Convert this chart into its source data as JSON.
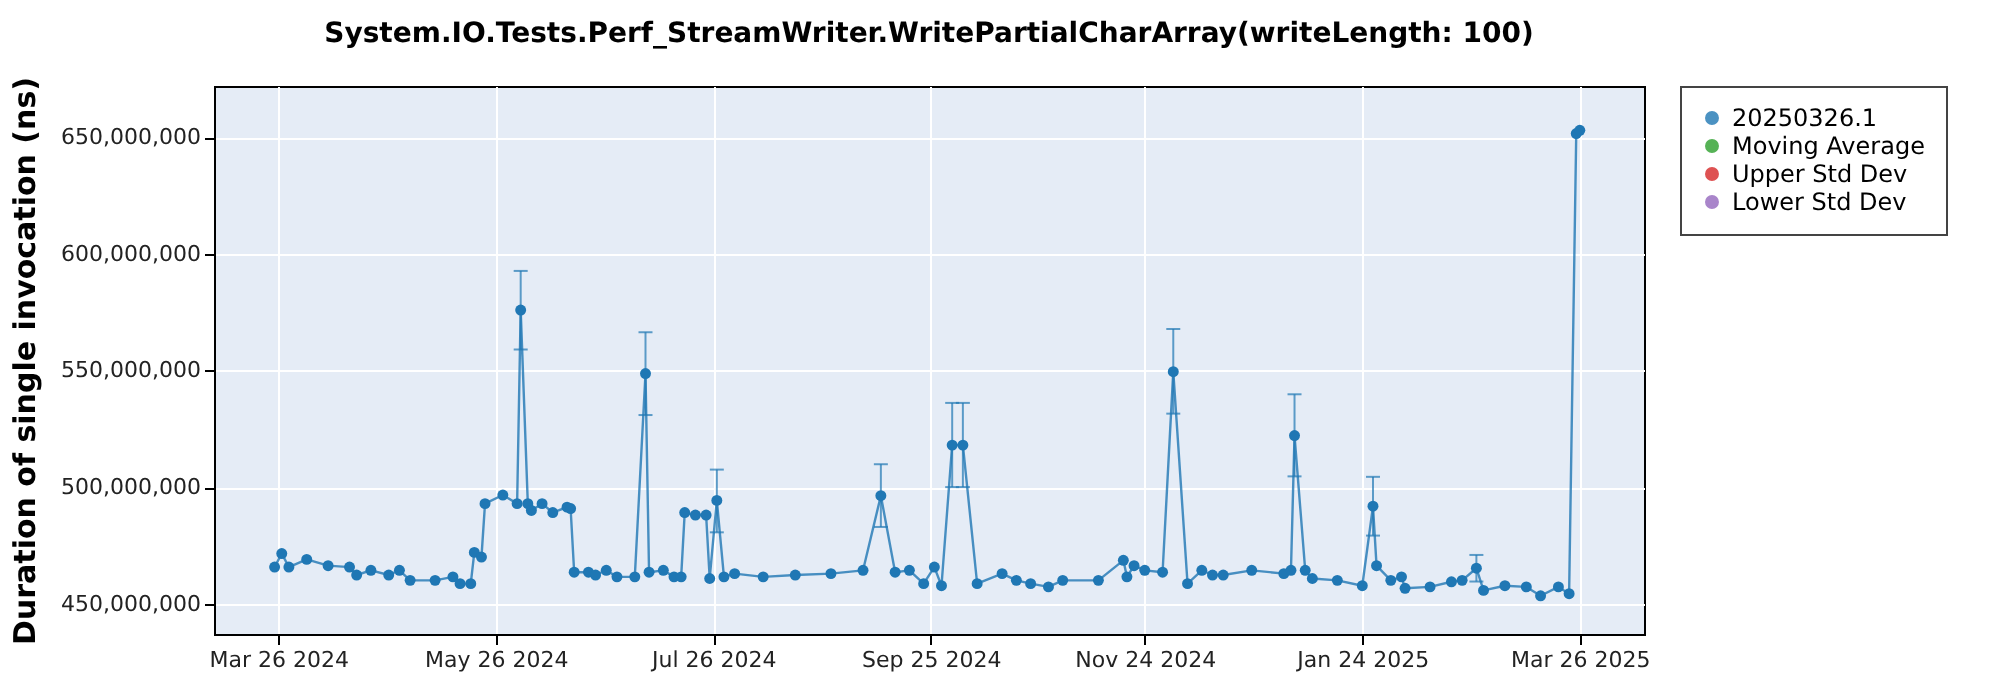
{
  "chart_data": {
    "type": "line",
    "title": "System.IO.Tests.Perf_StreamWriter.WritePartialCharArray(writeLength: 100)",
    "ylabel": "Duration of single invocation (ns)",
    "x": [
      "2024-03-25",
      "2024-03-27",
      "2024-03-29",
      "2024-04-03",
      "2024-04-09",
      "2024-04-15",
      "2024-04-17",
      "2024-04-21",
      "2024-04-26",
      "2024-04-29",
      "2024-05-02",
      "2024-05-09",
      "2024-05-14",
      "2024-05-16",
      "2024-05-19",
      "2024-05-20",
      "2024-05-22",
      "2024-05-23",
      "2024-05-28",
      "2024-06-01",
      "2024-06-02",
      "2024-06-04",
      "2024-06-05",
      "2024-06-08",
      "2024-06-11",
      "2024-06-15",
      "2024-06-16",
      "2024-06-17",
      "2024-06-21",
      "2024-06-23",
      "2024-06-26",
      "2024-06-29",
      "2024-07-04",
      "2024-07-07",
      "2024-07-08",
      "2024-07-12",
      "2024-07-15",
      "2024-07-17",
      "2024-07-18",
      "2024-07-21",
      "2024-07-24",
      "2024-07-25",
      "2024-07-27",
      "2024-07-29",
      "2024-08-01",
      "2024-08-09",
      "2024-08-18",
      "2024-08-28",
      "2024-09-06",
      "2024-09-11",
      "2024-09-15",
      "2024-09-19",
      "2024-09-23",
      "2024-09-26",
      "2024-09-28",
      "2024-10-01",
      "2024-10-04",
      "2024-10-08",
      "2024-10-15",
      "2024-10-19",
      "2024-10-23",
      "2024-10-28",
      "2024-11-01",
      "2024-11-11",
      "2024-11-18",
      "2024-11-19",
      "2024-11-21",
      "2024-11-24",
      "2024-11-29",
      "2024-12-02",
      "2024-12-06",
      "2024-12-10",
      "2024-12-13",
      "2024-12-16",
      "2024-12-24",
      "2025-01-02",
      "2025-01-04",
      "2025-01-05",
      "2025-01-08",
      "2025-01-10",
      "2025-01-17",
      "2025-01-24",
      "2025-01-27",
      "2025-01-28",
      "2025-02-01",
      "2025-02-04",
      "2025-02-05",
      "2025-02-12",
      "2025-02-18",
      "2025-02-21",
      "2025-02-25",
      "2025-02-27",
      "2025-03-05",
      "2025-03-11",
      "2025-03-15",
      "2025-03-20",
      "2025-03-23",
      "2025-03-25",
      "2025-03-26"
    ],
    "series": [
      {
        "name": "20250326.1",
        "color": "#1f77b4",
        "values": [
          465700000,
          471500000,
          465700000,
          469000000,
          466300000,
          465700000,
          462300000,
          464300000,
          462300000,
          464300000,
          460000000,
          460000000,
          461500000,
          458600000,
          458600000,
          472000000,
          470000000,
          492900000,
          496600000,
          492900000,
          575900000,
          492900000,
          490000000,
          492900000,
          489100000,
          491400000,
          490800000,
          463500000,
          463500000,
          462300000,
          464300000,
          461500000,
          461500000,
          548700000,
          463500000,
          464300000,
          461500000,
          461500000,
          489100000,
          488000000,
          488000000,
          460800000,
          494300000,
          461500000,
          462900000,
          461500000,
          462300000,
          462900000,
          464300000,
          496300000,
          463500000,
          464300000,
          458600000,
          465700000,
          457700000,
          518000000,
          518000000,
          458600000,
          462900000,
          460000000,
          458600000,
          457200000,
          460000000,
          460000000,
          468600000,
          461500000,
          466300000,
          464300000,
          463500000,
          549500000,
          458600000,
          464300000,
          462300000,
          462300000,
          464300000,
          462900000,
          464300000,
          522100000,
          464300000,
          460800000,
          460000000,
          457700000,
          491800000,
          466300000,
          460000000,
          461500000,
          456600000,
          457200000,
          459400000,
          460000000,
          465200000,
          455700000,
          457700000,
          457200000,
          453400000,
          457200000,
          454300000,
          651600000,
          653000000
        ],
        "errors": [
          null,
          null,
          null,
          null,
          null,
          null,
          null,
          null,
          null,
          null,
          null,
          null,
          null,
          null,
          null,
          null,
          null,
          null,
          null,
          null,
          [
            559000000,
            592700000
          ],
          null,
          null,
          null,
          null,
          null,
          null,
          null,
          null,
          null,
          null,
          null,
          null,
          [
            530900000,
            566400000
          ],
          null,
          null,
          null,
          null,
          null,
          null,
          null,
          null,
          [
            480600000,
            507500000
          ],
          null,
          null,
          null,
          null,
          null,
          null,
          [
            482900000,
            509800000
          ],
          null,
          null,
          null,
          null,
          null,
          [
            500000000,
            536100000
          ],
          [
            500000000,
            536100000
          ],
          null,
          null,
          null,
          null,
          null,
          null,
          null,
          null,
          null,
          null,
          null,
          null,
          [
            531500000,
            567800000
          ],
          null,
          null,
          null,
          null,
          null,
          null,
          null,
          [
            504600000,
            539800000
          ],
          null,
          null,
          null,
          null,
          [
            479200000,
            504400000
          ],
          null,
          null,
          null,
          null,
          null,
          null,
          null,
          [
            459500000,
            470900000
          ],
          null,
          null,
          null,
          null,
          null,
          null,
          null,
          null
        ]
      },
      {
        "name": "Moving Average",
        "color": "#2ca02c",
        "values": [
          null,
          null,
          null,
          null,
          null,
          null,
          null,
          null,
          null,
          null,
          null,
          null,
          null,
          null,
          null,
          null,
          null,
          null,
          null,
          null,
          null,
          null,
          null,
          null,
          null,
          null,
          null,
          null,
          null,
          null,
          null,
          null,
          null,
          null,
          null,
          null,
          null,
          null,
          null,
          null,
          null,
          null,
          null,
          null,
          null,
          null,
          null,
          null,
          null,
          null,
          null,
          null,
          null,
          null,
          null,
          null,
          null,
          null,
          null,
          null,
          null,
          null,
          null,
          null,
          null,
          null,
          null,
          null,
          null,
          null,
          null,
          null,
          null,
          null,
          null,
          null,
          null,
          null,
          null,
          null,
          null,
          null,
          null,
          null,
          null,
          null,
          null,
          null,
          null,
          null,
          null,
          null,
          null,
          null,
          null,
          null,
          null,
          null,
          null
        ]
      },
      {
        "name": "Upper Std Dev",
        "color": "#d62728",
        "values": [
          null,
          null,
          null,
          null,
          null,
          null,
          null,
          null,
          null,
          null,
          null,
          null,
          null,
          null,
          null,
          null,
          null,
          null,
          null,
          null,
          null,
          null,
          null,
          null,
          null,
          null,
          null,
          null,
          null,
          null,
          null,
          null,
          null,
          null,
          null,
          null,
          null,
          null,
          null,
          null,
          null,
          null,
          null,
          null,
          null,
          null,
          null,
          null,
          null,
          null,
          null,
          null,
          null,
          null,
          null,
          null,
          null,
          null,
          null,
          null,
          null,
          null,
          null,
          null,
          null,
          null,
          null,
          null,
          null,
          null,
          null,
          null,
          null,
          null,
          null,
          null,
          null,
          null,
          null,
          null,
          null,
          null,
          null,
          null,
          null,
          null,
          null,
          null,
          null,
          null,
          null,
          null,
          null,
          null,
          null,
          null,
          null,
          null,
          null
        ]
      },
      {
        "name": "Lower Std Dev",
        "color": "#9467bd",
        "values": [
          null,
          null,
          null,
          null,
          null,
          null,
          null,
          null,
          null,
          null,
          null,
          null,
          null,
          null,
          null,
          null,
          null,
          null,
          null,
          null,
          null,
          null,
          null,
          null,
          null,
          null,
          null,
          null,
          null,
          null,
          null,
          null,
          null,
          null,
          null,
          null,
          null,
          null,
          null,
          null,
          null,
          null,
          null,
          null,
          null,
          null,
          null,
          null,
          null,
          null,
          null,
          null,
          null,
          null,
          null,
          null,
          null,
          null,
          null,
          null,
          null,
          null,
          null,
          null,
          null,
          null,
          null,
          null,
          null,
          null,
          null,
          null,
          null,
          null,
          null,
          null,
          null,
          null,
          null,
          null,
          null,
          null,
          null,
          null,
          null,
          null,
          null,
          null,
          null,
          null,
          null,
          null,
          null,
          null,
          null,
          null,
          null,
          null,
          null
        ]
      }
    ],
    "xlim": [
      "2024-03-08",
      "2025-04-13"
    ],
    "xticks": [
      {
        "value": "2024-03-26",
        "label": "Mar 26 2024"
      },
      {
        "value": "2024-05-26",
        "label": "May 26 2024"
      },
      {
        "value": "2024-07-26",
        "label": "Jul 26 2024"
      },
      {
        "value": "2024-09-25",
        "label": "Sep 25 2024"
      },
      {
        "value": "2024-11-24",
        "label": "Nov 24 2024"
      },
      {
        "value": "2025-01-24",
        "label": "Jan 24 2025"
      },
      {
        "value": "2025-03-26",
        "label": "Mar 26 2025"
      }
    ],
    "ylim": [
      437000000,
      672000000
    ],
    "yticks": [
      {
        "value": 450000000,
        "label": "450,000,000"
      },
      {
        "value": 500000000,
        "label": "500,000,000"
      },
      {
        "value": 550000000,
        "label": "550,000,000"
      },
      {
        "value": 600000000,
        "label": "600,000,000"
      },
      {
        "value": 650000000,
        "label": "650,000,000"
      }
    ],
    "grid": true,
    "legend": "right",
    "marker": "circle",
    "line_style": "solid"
  }
}
